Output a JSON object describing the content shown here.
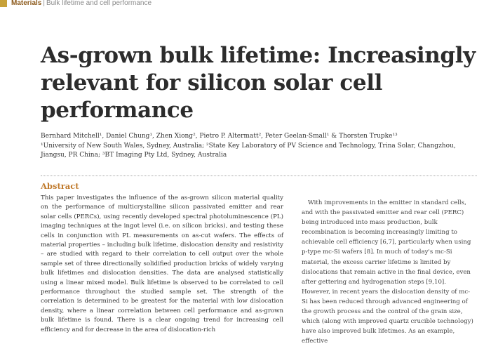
{
  "section_header": {
    "name": "Materials",
    "separator": "|",
    "topic": "Bulk lifetime and cell performance"
  },
  "article": {
    "title": "As-grown bulk lifetime: Increasingly relevant for silicon solar cell performance",
    "authors": "Bernhard Mitchell¹, Daniel Chung¹, Zhen Xiong², Pietro P. Altermatt², Peter Geelan-Small¹ & Thorsten Trupke¹³",
    "affiliations": "¹University of New South Wales, Sydney, Australia; ²State Key Laboratory of PV Science and Technology, Trina Solar, Changzhou, Jiangsu, PR China; ³BT Imaging Pty Ltd, Sydney, Australia"
  },
  "abstract": {
    "heading": "Abstract",
    "text": "This paper investigates the influence of the as-grown silicon material quality on the performance of multicrystalline silicon passivated emitter and rear solar cells (PERCs), using recently developed spectral photoluminescence (PL) imaging techniques at the ingot level (i.e. on silicon bricks), and testing these cells in conjunction with PL measurements on as-cut wafers. The effects of material properties – including bulk lifetime, dislocation density and resistivity – are studied with regard to their correlation to cell output over the whole sample set of three directionally solidified production bricks of widely varying bulk lifetimes and dislocation densities. The data are analysed statistically using a linear mixed model. Bulk lifetime is observed to be correlated to cell performance throughout the studied sample set. The strength of the correlation is determined to be greatest for the material with low dislocation density, where a linear correlation between cell performance and as-grown bulk lifetime is found. There is a clear ongoing trend for increasing cell efficiency and for decrease in the area of dislocation-rich"
  },
  "introduction": {
    "text": "With improvements in the emitter in standard cells, and with the passivated emitter and rear cell (PERC) being introduced into mass production, bulk recombination is becoming increasingly limiting to achievable cell efficiency [6,7], particularly when using p-type mc-Si wafers [8]. In much of today's mc-Si material, the excess carrier lifetime is limited by dislocations that remain active in the final device, even after gettering and hydrogenation steps [9,10]. However, in recent years the dislocation density of mc-Si has been reduced through advanced engineering of the growth process and the control of the grain size, which (along with improved quartz crucible technology) have also improved bulk lifetimes. As an example, effective"
  }
}
